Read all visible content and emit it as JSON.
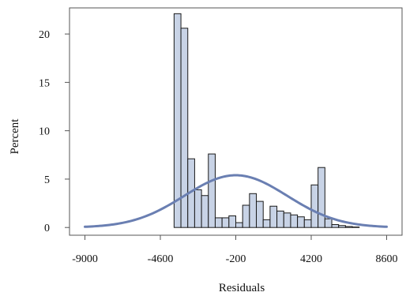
{
  "chart_data": {
    "type": "bar",
    "subtype": "histogram-with-normal-fit",
    "xlabel": "Residuals",
    "ylabel": "Percent",
    "x_ticks": [
      -9000,
      -4600,
      -200,
      4200,
      8600
    ],
    "y_ticks": [
      0,
      5,
      10,
      15,
      20
    ],
    "xlim": [
      -9900,
      9500
    ],
    "ylim": [
      -0.8,
      22.7
    ],
    "bin_width": 400,
    "bins": [
      {
        "center": -3600,
        "percent": 22.1
      },
      {
        "center": -3200,
        "percent": 20.6
      },
      {
        "center": -2800,
        "percent": 7.1
      },
      {
        "center": -2400,
        "percent": 3.9
      },
      {
        "center": -2000,
        "percent": 3.3
      },
      {
        "center": -1600,
        "percent": 7.6
      },
      {
        "center": -1200,
        "percent": 1.0
      },
      {
        "center": -800,
        "percent": 1.0
      },
      {
        "center": -400,
        "percent": 1.2
      },
      {
        "center": 0,
        "percent": 0.5
      },
      {
        "center": 400,
        "percent": 2.3
      },
      {
        "center": 800,
        "percent": 3.5
      },
      {
        "center": 1200,
        "percent": 2.7
      },
      {
        "center": 1600,
        "percent": 0.8
      },
      {
        "center": 2000,
        "percent": 2.2
      },
      {
        "center": 2400,
        "percent": 1.7
      },
      {
        "center": 2800,
        "percent": 1.5
      },
      {
        "center": 3200,
        "percent": 1.3
      },
      {
        "center": 3600,
        "percent": 1.1
      },
      {
        "center": 4000,
        "percent": 0.8
      },
      {
        "center": 4400,
        "percent": 4.4
      },
      {
        "center": 4800,
        "percent": 6.2
      },
      {
        "center": 5200,
        "percent": 0.9
      },
      {
        "center": 5600,
        "percent": 0.3
      },
      {
        "center": 6000,
        "percent": 0.2
      },
      {
        "center": 6400,
        "percent": 0.1
      },
      {
        "center": 6800,
        "percent": 0.05
      }
    ],
    "normal_curve": {
      "mean": -200,
      "sd": 3000,
      "peak_percent": 5.4,
      "x_range": [
        -9000,
        8600
      ]
    },
    "grid": false,
    "legend": "none"
  }
}
